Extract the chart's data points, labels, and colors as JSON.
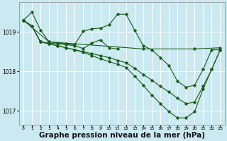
{
  "background_color": "#cbe9f0",
  "grid_color": "#ffffff",
  "line_color": "#1a5c1a",
  "marker_color": "#1a5c1a",
  "xlabel": "Graphe pression niveau de la mer (hPa)",
  "xlabel_fontsize": 7.5,
  "yticks": [
    1017,
    1018,
    1019
  ],
  "ylim": [
    1016.65,
    1019.75
  ],
  "xlim": [
    -0.5,
    23.5
  ],
  "xticks": [
    0,
    1,
    2,
    3,
    4,
    5,
    6,
    7,
    8,
    9,
    10,
    11,
    12,
    13,
    14,
    15,
    16,
    17,
    18,
    19,
    20,
    21,
    22,
    23
  ],
  "series1_x": [
    0,
    1,
    2,
    3,
    4,
    5,
    6,
    7,
    8,
    9,
    10,
    11,
    12,
    13,
    14,
    15,
    16,
    17,
    18,
    19,
    20,
    21,
    22,
    23
  ],
  "series1_y": [
    1019.3,
    1019.5,
    1019.05,
    1018.75,
    1018.72,
    1018.7,
    1018.68,
    1019.02,
    1019.08,
    1019.1,
    1019.18,
    1019.45,
    1019.45,
    1019.05,
    1018.65,
    1018.55,
    1018.35,
    1018.15,
    1017.75,
    1017.6,
    1017.65,
    1018.05,
    1018.55,
    1018.55
  ],
  "series2_x": [
    0,
    1,
    2,
    3,
    4,
    5,
    6,
    7,
    8,
    9,
    10,
    11
  ],
  "series2_y": [
    1019.3,
    1019.15,
    1018.75,
    1018.72,
    1018.7,
    1018.68,
    1018.65,
    1018.58,
    1018.72,
    1018.8,
    1018.6,
    1018.57
  ],
  "series3_x": [
    0,
    1,
    2,
    3,
    4,
    5,
    6,
    7,
    8,
    9,
    10,
    11,
    12,
    13,
    14,
    15,
    16,
    17,
    18,
    19,
    20,
    21,
    22,
    23
  ],
  "series3_y": [
    1019.3,
    1019.15,
    1018.75,
    1018.7,
    1018.65,
    1018.6,
    1018.55,
    1018.5,
    1018.45,
    1018.4,
    1018.35,
    1018.28,
    1018.22,
    1018.08,
    1017.92,
    1017.78,
    1017.62,
    1017.48,
    1017.32,
    1017.18,
    1017.22,
    1017.62,
    1018.05,
    1018.55
  ],
  "series4_x": [
    0,
    1,
    2,
    3,
    4,
    5,
    6,
    7,
    8,
    9,
    10,
    11,
    12,
    13,
    14,
    15,
    16,
    17,
    18,
    19,
    20,
    21,
    22,
    23
  ],
  "series4_y": [
    1019.3,
    1019.15,
    1018.75,
    1018.7,
    1018.65,
    1018.6,
    1018.55,
    1018.48,
    1018.4,
    1018.32,
    1018.25,
    1018.18,
    1018.1,
    1017.88,
    1017.65,
    1017.4,
    1017.18,
    1016.98,
    1016.82,
    1016.82,
    1016.98,
    1017.55,
    1018.05,
    1018.55
  ],
  "series5_x": [
    0,
    3,
    14,
    20,
    23
  ],
  "series5_y": [
    1019.3,
    1018.75,
    1018.57,
    1018.57,
    1018.6
  ]
}
